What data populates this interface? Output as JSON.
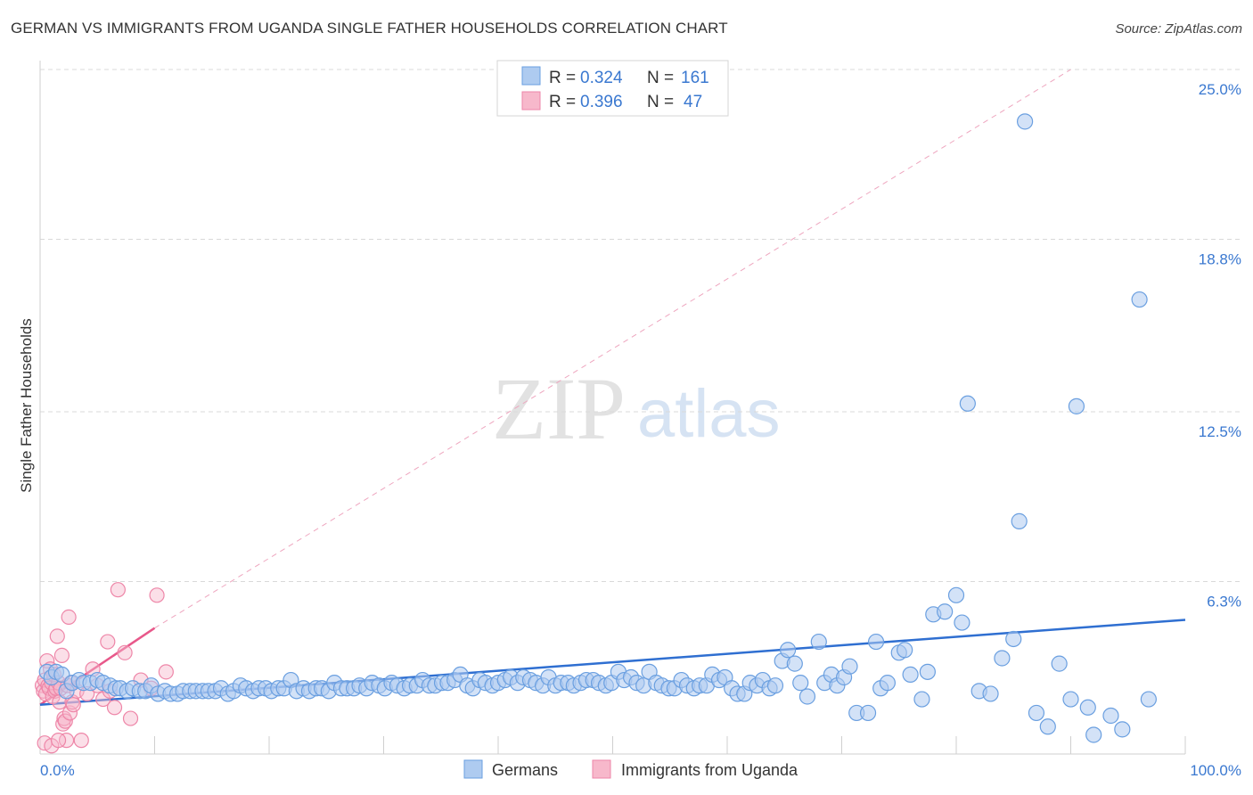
{
  "title": "GERMAN VS IMMIGRANTS FROM UGANDA SINGLE FATHER HOUSEHOLDS CORRELATION CHART",
  "source": "Source: ZipAtlas.com",
  "watermark": {
    "zip": "ZIP",
    "atlas": "atlas"
  },
  "colors": {
    "blue_fill": "#aecbf0",
    "blue_stroke": "#6a9fe0",
    "blue_line": "#2f6fd1",
    "pink_fill": "#f7b8cb",
    "pink_stroke": "#ee86a8",
    "pink_line": "#e8588a",
    "grid": "#d9d9d9",
    "axis_text": "#3a78d0"
  },
  "legend": {
    "r_label": "R = ",
    "n_label": "N = ",
    "entries": [
      {
        "r": "0.324",
        "n": "161",
        "color": "blue"
      },
      {
        "r": "0.396",
        "n": "47",
        "color": "pink"
      }
    ]
  },
  "chart_data": {
    "type": "scatter",
    "title": "GERMAN VS IMMIGRANTS FROM UGANDA SINGLE FATHER HOUSEHOLDS CORRELATION CHART",
    "xlabel": "",
    "ylabel": "Single Father Households",
    "xlim": [
      0,
      100
    ],
    "ylim": [
      0,
      25
    ],
    "x_tick_labels": [
      "0.0%",
      "100.0%"
    ],
    "y_ticks": [
      6.3,
      12.5,
      18.8,
      25.0
    ],
    "y_tick_labels": [
      "6.3%",
      "12.5%",
      "18.8%",
      "25.0%"
    ],
    "grid": true,
    "legend_position": "top-center",
    "series": [
      {
        "name": "Germans",
        "color": "blue",
        "r": 0.324,
        "n": 161,
        "trend": {
          "x": [
            0,
            100
          ],
          "y": [
            1.8,
            4.9
          ]
        },
        "points": [
          [
            0.6,
            3.0
          ],
          [
            1.0,
            2.8
          ],
          [
            1.4,
            3.0
          ],
          [
            1.9,
            2.9
          ],
          [
            2.3,
            2.3
          ],
          [
            2.8,
            2.6
          ],
          [
            3.4,
            2.7
          ],
          [
            3.8,
            2.6
          ],
          [
            4.4,
            2.6
          ],
          [
            5.0,
            2.7
          ],
          [
            5.5,
            2.6
          ],
          [
            6.1,
            2.5
          ],
          [
            6.6,
            2.4
          ],
          [
            7.0,
            2.4
          ],
          [
            7.6,
            2.3
          ],
          [
            8.1,
            2.4
          ],
          [
            8.7,
            2.3
          ],
          [
            9.2,
            2.3
          ],
          [
            9.7,
            2.5
          ],
          [
            10.3,
            2.2
          ],
          [
            10.9,
            2.3
          ],
          [
            11.4,
            2.2
          ],
          [
            12.0,
            2.2
          ],
          [
            12.5,
            2.3
          ],
          [
            13.1,
            2.3
          ],
          [
            13.6,
            2.3
          ],
          [
            14.2,
            2.3
          ],
          [
            14.7,
            2.3
          ],
          [
            15.3,
            2.3
          ],
          [
            15.8,
            2.4
          ],
          [
            16.4,
            2.2
          ],
          [
            16.9,
            2.3
          ],
          [
            17.5,
            2.5
          ],
          [
            18.0,
            2.4
          ],
          [
            18.6,
            2.3
          ],
          [
            19.1,
            2.4
          ],
          [
            19.7,
            2.4
          ],
          [
            20.2,
            2.3
          ],
          [
            20.8,
            2.4
          ],
          [
            21.3,
            2.4
          ],
          [
            21.9,
            2.7
          ],
          [
            22.4,
            2.3
          ],
          [
            23.0,
            2.4
          ],
          [
            23.5,
            2.3
          ],
          [
            24.1,
            2.4
          ],
          [
            24.6,
            2.4
          ],
          [
            25.2,
            2.3
          ],
          [
            25.7,
            2.6
          ],
          [
            26.3,
            2.4
          ],
          [
            26.8,
            2.4
          ],
          [
            27.4,
            2.4
          ],
          [
            27.9,
            2.5
          ],
          [
            28.5,
            2.4
          ],
          [
            29.0,
            2.6
          ],
          [
            29.6,
            2.5
          ],
          [
            30.1,
            2.4
          ],
          [
            30.7,
            2.6
          ],
          [
            31.2,
            2.5
          ],
          [
            31.8,
            2.4
          ],
          [
            32.3,
            2.5
          ],
          [
            32.9,
            2.5
          ],
          [
            33.4,
            2.7
          ],
          [
            34.0,
            2.5
          ],
          [
            34.5,
            2.5
          ],
          [
            35.1,
            2.6
          ],
          [
            35.6,
            2.6
          ],
          [
            36.2,
            2.7
          ],
          [
            36.7,
            2.9
          ],
          [
            37.3,
            2.5
          ],
          [
            37.8,
            2.4
          ],
          [
            38.4,
            2.7
          ],
          [
            38.9,
            2.6
          ],
          [
            39.5,
            2.5
          ],
          [
            40.0,
            2.6
          ],
          [
            40.6,
            2.7
          ],
          [
            41.1,
            2.8
          ],
          [
            41.7,
            2.6
          ],
          [
            42.2,
            2.8
          ],
          [
            42.8,
            2.7
          ],
          [
            43.3,
            2.6
          ],
          [
            43.9,
            2.5
          ],
          [
            44.4,
            2.8
          ],
          [
            45.0,
            2.5
          ],
          [
            45.5,
            2.6
          ],
          [
            46.1,
            2.6
          ],
          [
            46.6,
            2.5
          ],
          [
            47.2,
            2.6
          ],
          [
            47.7,
            2.7
          ],
          [
            48.3,
            2.7
          ],
          [
            48.8,
            2.6
          ],
          [
            49.4,
            2.5
          ],
          [
            49.9,
            2.6
          ],
          [
            50.5,
            3.0
          ],
          [
            51.0,
            2.7
          ],
          [
            51.6,
            2.8
          ],
          [
            52.1,
            2.6
          ],
          [
            52.7,
            2.5
          ],
          [
            53.2,
            3.0
          ],
          [
            53.8,
            2.6
          ],
          [
            54.3,
            2.5
          ],
          [
            54.9,
            2.4
          ],
          [
            55.4,
            2.4
          ],
          [
            56.0,
            2.7
          ],
          [
            56.5,
            2.5
          ],
          [
            57.1,
            2.4
          ],
          [
            57.6,
            2.5
          ],
          [
            58.2,
            2.5
          ],
          [
            58.7,
            2.9
          ],
          [
            59.3,
            2.7
          ],
          [
            59.8,
            2.8
          ],
          [
            60.4,
            2.4
          ],
          [
            60.9,
            2.2
          ],
          [
            61.5,
            2.2
          ],
          [
            62.0,
            2.6
          ],
          [
            62.6,
            2.5
          ],
          [
            63.1,
            2.7
          ],
          [
            63.7,
            2.4
          ],
          [
            64.2,
            2.5
          ],
          [
            64.8,
            3.4
          ],
          [
            65.3,
            3.8
          ],
          [
            65.9,
            3.3
          ],
          [
            66.4,
            2.6
          ],
          [
            67.0,
            2.1
          ],
          [
            68.0,
            4.1
          ],
          [
            68.5,
            2.6
          ],
          [
            69.1,
            2.9
          ],
          [
            69.6,
            2.5
          ],
          [
            70.2,
            2.8
          ],
          [
            70.7,
            3.2
          ],
          [
            71.3,
            1.5
          ],
          [
            72.3,
            1.5
          ],
          [
            73.0,
            4.1
          ],
          [
            73.4,
            2.4
          ],
          [
            74.0,
            2.6
          ],
          [
            75.0,
            3.7
          ],
          [
            75.5,
            3.8
          ],
          [
            76.0,
            2.9
          ],
          [
            77.0,
            2.0
          ],
          [
            77.5,
            3.0
          ],
          [
            78.0,
            5.1
          ],
          [
            79.0,
            5.2
          ],
          [
            80.0,
            5.8
          ],
          [
            80.5,
            4.8
          ],
          [
            81.0,
            12.8
          ],
          [
            82.0,
            2.3
          ],
          [
            83.0,
            2.2
          ],
          [
            84.0,
            3.5
          ],
          [
            85.0,
            4.2
          ],
          [
            85.5,
            8.5
          ],
          [
            86.0,
            23.1
          ],
          [
            87.0,
            1.5
          ],
          [
            88.0,
            1.0
          ],
          [
            89.0,
            3.3
          ],
          [
            90.0,
            2.0
          ],
          [
            90.5,
            12.7
          ],
          [
            91.5,
            1.7
          ],
          [
            92.0,
            0.7
          ],
          [
            93.5,
            1.4
          ],
          [
            94.5,
            0.9
          ],
          [
            96.0,
            16.6
          ],
          [
            96.8,
            2.0
          ]
        ]
      },
      {
        "name": "Immigrants from Uganda",
        "color": "pink",
        "r": 0.396,
        "n": 47,
        "trend": {
          "x": [
            0,
            10
          ],
          "y": [
            1.8,
            4.6
          ]
        },
        "trend_extended": {
          "x": [
            10,
            90
          ],
          "y": [
            4.6,
            25.0
          ]
        },
        "points": [
          [
            0.2,
            2.5
          ],
          [
            0.3,
            2.3
          ],
          [
            0.4,
            2.7
          ],
          [
            0.5,
            2.2
          ],
          [
            0.6,
            3.4
          ],
          [
            0.7,
            2.5
          ],
          [
            0.8,
            2.4
          ],
          [
            0.9,
            3.1
          ],
          [
            1.0,
            2.6
          ],
          [
            1.1,
            2.1
          ],
          [
            1.2,
            2.9
          ],
          [
            1.3,
            2.3
          ],
          [
            1.4,
            2.4
          ],
          [
            1.5,
            4.3
          ],
          [
            1.6,
            2.6
          ],
          [
            1.7,
            1.9
          ],
          [
            1.8,
            2.4
          ],
          [
            1.9,
            3.6
          ],
          [
            2.0,
            1.1
          ],
          [
            2.1,
            1.3
          ],
          [
            2.2,
            1.2
          ],
          [
            2.3,
            0.5
          ],
          [
            2.4,
            2.5
          ],
          [
            2.5,
            5.0
          ],
          [
            2.6,
            1.5
          ],
          [
            2.7,
            2.6
          ],
          [
            2.8,
            1.9
          ],
          [
            0.4,
            0.4
          ],
          [
            1.0,
            0.3
          ],
          [
            1.6,
            0.5
          ],
          [
            2.9,
            1.8
          ],
          [
            3.2,
            2.3
          ],
          [
            3.6,
            0.5
          ],
          [
            4.1,
            2.2
          ],
          [
            4.6,
            3.1
          ],
          [
            5.0,
            2.5
          ],
          [
            5.5,
            2.0
          ],
          [
            5.9,
            4.1
          ],
          [
            6.1,
            2.3
          ],
          [
            6.5,
            1.7
          ],
          [
            6.8,
            6.0
          ],
          [
            7.4,
            3.7
          ],
          [
            7.9,
            1.3
          ],
          [
            8.8,
            2.7
          ],
          [
            9.7,
            2.4
          ],
          [
            10.2,
            5.8
          ],
          [
            11.0,
            3.0
          ]
        ]
      }
    ]
  },
  "bottom_legend": [
    {
      "label": "Germans",
      "color": "blue"
    },
    {
      "label": "Immigrants from Uganda",
      "color": "pink"
    }
  ]
}
